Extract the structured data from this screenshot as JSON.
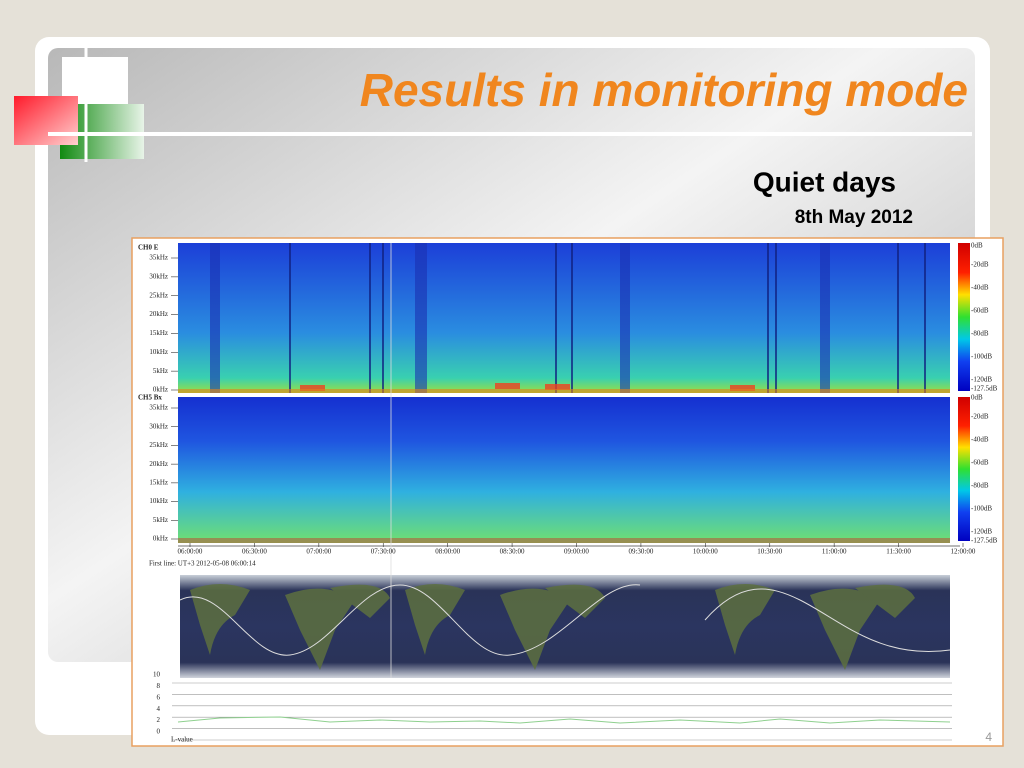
{
  "slide": {
    "title": "Results in monitoring mode",
    "subtitle": "Quiet days",
    "date": "8th May 2012",
    "page_number": "4"
  },
  "figure": {
    "panels": [
      {
        "label": "CH0 E"
      },
      {
        "label": "CH5 Bx"
      }
    ],
    "freq_labels": [
      "35kHz",
      "30kHz",
      "25kHz",
      "20kHz",
      "15kHz",
      "10kHz",
      "5kHz",
      "0kHz"
    ],
    "db_labels": [
      "0dB",
      "-20dB",
      "-40dB",
      "-60dB",
      "-80dB",
      "-100dB",
      "-120dB",
      "-127.5dB"
    ],
    "time_labels": [
      "06:00:00",
      "06:30:00",
      "07:00:00",
      "07:30:00",
      "08:00:00",
      "08:30:00",
      "09:00:00",
      "09:30:00",
      "10:00:00",
      "10:30:00",
      "11:00:00",
      "11:30:00",
      "12:00:00"
    ],
    "first_line": "First line: UT+3 2012-05-08 06:00:14",
    "lvalue_ticks": [
      "10",
      "8",
      "6",
      "4",
      "2",
      "0"
    ],
    "lvalue_label": "L-value"
  }
}
